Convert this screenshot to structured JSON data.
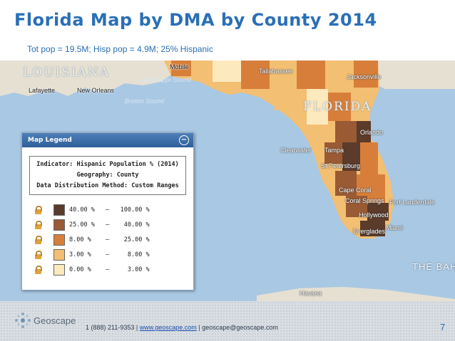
{
  "slide": {
    "title": "Florida Map by DMA by County 2014",
    "subtitle": "Tot pop = 19.5M;  Hisp pop = 4.9M; 25% Hispanic",
    "page_number": "7"
  },
  "map": {
    "labels": {
      "louisiana": "LOUISIANA",
      "florida": "FLORIDA",
      "the_bahamas": "THE BAH",
      "mississippi_sound": "Mississippi Sound",
      "breton_sound": "Breton Sound",
      "lafayette": "Lafayette",
      "new_orleans": "New Orleans",
      "mobile": "Mobile",
      "tallahassee": "Tallahassee",
      "jacksonville": "Jacksonville",
      "orlando": "Orlando",
      "clearwater": "Clearwater",
      "tampa": "Tampa",
      "st_petersburg": "St Petersburg",
      "cape_coral": "Cape Coral",
      "coral_springs": "Coral Springs",
      "fort_lauderdale": "Fort Lauderdale",
      "hollywood": "Hollywood",
      "miami": "Miami",
      "everglades": "Everglades",
      "havana": "Havana"
    },
    "colors": {
      "water": "#a9c8e3",
      "land": "#e6e0d2",
      "class_1": "#5b3b2a",
      "class_2": "#9a5a34",
      "class_3": "#d77f3a",
      "class_4": "#f3bf72",
      "class_5": "#fce9bd"
    }
  },
  "legend": {
    "title": "Map Legend",
    "collapse_icon": "minus",
    "indicator": "Indicator: Hispanic Population % (2014)",
    "geography": "Geography: County",
    "method": "Data Distribution Method: Custom Ranges",
    "ranges": [
      {
        "label": "40.00 %   —   100.00 %",
        "color": "#5b3b2a"
      },
      {
        "label": "25.00 %   —    40.00 %",
        "color": "#9a5a34"
      },
      {
        "label": "8.00 %    —    25.00 %",
        "color": "#d77f3a"
      },
      {
        "label": "3.00 %    —     8.00 %",
        "color": "#f3bf72"
      },
      {
        "label": "0.00 %    —     3.00 %",
        "color": "#fce9bd"
      }
    ]
  },
  "footer": {
    "brand": "Geoscape",
    "phone": "1 (888) 211-9353",
    "separator": "|",
    "website": "www.geoscape.com",
    "email": "geoscape@geoscape.com"
  }
}
